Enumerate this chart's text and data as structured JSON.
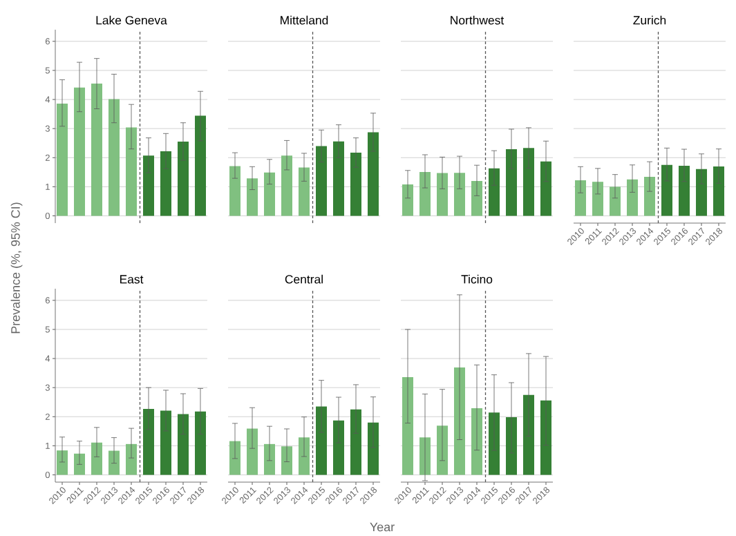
{
  "chart_data": [
    {
      "type": "bar",
      "title": "Lake Geneva",
      "ylabel": "Prevalence (%, 95% CI)",
      "x": [
        2010,
        2011,
        2012,
        2013,
        2014,
        2015,
        2016,
        2017,
        2018
      ],
      "xlim": [
        2009.6,
        2018.4
      ],
      "ylim": [
        -0.25,
        6.4
      ],
      "yticks": [
        0,
        1,
        2,
        3,
        4,
        5,
        6
      ],
      "grid": "y",
      "tick_labels": "y",
      "values": [
        3.86,
        4.41,
        4.55,
        4.01,
        3.04,
        2.07,
        2.22,
        2.55,
        3.44
      ],
      "errors": [
        [
          3.08,
          4.68
        ],
        [
          3.58,
          5.28
        ],
        [
          3.68,
          5.41
        ],
        [
          3.2,
          4.87
        ],
        [
          2.3,
          3.83
        ],
        [
          1.48,
          2.68
        ],
        [
          1.62,
          2.83
        ],
        [
          1.91,
          3.2
        ],
        [
          2.58,
          4.28
        ]
      ],
      "colors": [
        "#80c080",
        "#80c080",
        "#80c080",
        "#80c080",
        "#80c080",
        "#358035",
        "#358035",
        "#358035",
        "#358035"
      ],
      "ref_lines": [
        {
          "axis": "x",
          "value": 2014.5,
          "color": "#555555",
          "line_style": "dashed"
        }
      ]
    },
    {
      "type": "bar",
      "title": "Mitteland",
      "x": [
        2010,
        2011,
        2012,
        2013,
        2014,
        2015,
        2016,
        2017,
        2018
      ],
      "xlim": [
        2009.6,
        2018.4
      ],
      "ylim": [
        -0.25,
        6.4
      ],
      "yticks": [
        0,
        1,
        2,
        3,
        4,
        5,
        6
      ],
      "grid": "y",
      "tick_labels": false,
      "values": [
        1.71,
        1.29,
        1.49,
        2.07,
        1.66,
        2.4,
        2.56,
        2.17,
        2.87
      ],
      "errors": [
        [
          1.29,
          2.17
        ],
        [
          0.9,
          1.69
        ],
        [
          1.09,
          1.94
        ],
        [
          1.58,
          2.59
        ],
        [
          1.19,
          2.15
        ],
        [
          1.85,
          2.95
        ],
        [
          2.0,
          3.13
        ],
        [
          1.67,
          2.68
        ],
        [
          2.22,
          3.53
        ]
      ],
      "colors": [
        "#80c080",
        "#80c080",
        "#80c080",
        "#80c080",
        "#80c080",
        "#358035",
        "#358035",
        "#358035",
        "#358035"
      ],
      "ref_lines": [
        {
          "axis": "x",
          "value": 2014.5,
          "color": "#555555",
          "line_style": "dashed"
        }
      ]
    },
    {
      "type": "bar",
      "title": "Northwest",
      "x": [
        2010,
        2011,
        2012,
        2013,
        2014,
        2015,
        2016,
        2017,
        2018
      ],
      "xlim": [
        2009.6,
        2018.4
      ],
      "ylim": [
        -0.25,
        6.4
      ],
      "yticks": [
        0,
        1,
        2,
        3,
        4,
        5,
        6
      ],
      "grid": "y",
      "tick_labels": false,
      "values": [
        1.08,
        1.51,
        1.47,
        1.48,
        1.2,
        1.63,
        2.29,
        2.33,
        1.87
      ],
      "errors": [
        [
          0.61,
          1.56
        ],
        [
          0.96,
          2.1
        ],
        [
          0.93,
          2.02
        ],
        [
          0.93,
          2.05
        ],
        [
          0.69,
          1.74
        ],
        [
          1.05,
          2.24
        ],
        [
          1.62,
          2.98
        ],
        [
          1.64,
          3.03
        ],
        [
          1.18,
          2.57
        ]
      ],
      "colors": [
        "#80c080",
        "#80c080",
        "#80c080",
        "#80c080",
        "#80c080",
        "#358035",
        "#358035",
        "#358035",
        "#358035"
      ],
      "ref_lines": [
        {
          "axis": "x",
          "value": 2014.5,
          "color": "#555555",
          "line_style": "dashed"
        }
      ]
    },
    {
      "type": "bar",
      "title": "Zurich",
      "x": [
        2010,
        2011,
        2012,
        2013,
        2014,
        2015,
        2016,
        2017,
        2018
      ],
      "xlim": [
        2009.6,
        2018.4
      ],
      "xticks": [
        2010,
        2011,
        2012,
        2013,
        2014,
        2015,
        2016,
        2017,
        2018
      ],
      "ylim": [
        -0.25,
        6.4
      ],
      "yticks": [
        0,
        1,
        2,
        3,
        4,
        5,
        6
      ],
      "grid": "y",
      "tick_labels": "x",
      "values": [
        1.22,
        1.17,
        1.0,
        1.25,
        1.34,
        1.75,
        1.72,
        1.61,
        1.7
      ],
      "errors": [
        [
          0.79,
          1.69
        ],
        [
          0.75,
          1.63
        ],
        [
          0.61,
          1.42
        ],
        [
          0.81,
          1.75
        ],
        [
          0.84,
          1.86
        ],
        [
          1.2,
          2.33
        ],
        [
          1.18,
          2.29
        ],
        [
          1.1,
          2.13
        ],
        [
          1.12,
          2.3
        ]
      ],
      "colors": [
        "#80c080",
        "#80c080",
        "#80c080",
        "#80c080",
        "#80c080",
        "#358035",
        "#358035",
        "#358035",
        "#358035"
      ],
      "ref_lines": [
        {
          "axis": "x",
          "value": 2014.5,
          "color": "#555555",
          "line_style": "dashed"
        }
      ]
    },
    {
      "type": "bar",
      "title": "East",
      "x": [
        2010,
        2011,
        2012,
        2013,
        2014,
        2015,
        2016,
        2017,
        2018
      ],
      "xlim": [
        2009.6,
        2018.4
      ],
      "xticks": [
        2010,
        2011,
        2012,
        2013,
        2014,
        2015,
        2016,
        2017,
        2018
      ],
      "ylim": [
        -0.25,
        6.4
      ],
      "yticks": [
        0,
        1,
        2,
        3,
        4,
        5,
        6
      ],
      "grid": "y",
      "values": [
        0.84,
        0.73,
        1.11,
        0.83,
        1.06,
        2.27,
        2.21,
        2.09,
        2.18
      ],
      "errors": [
        [
          0.44,
          1.3
        ],
        [
          0.36,
          1.16
        ],
        [
          0.62,
          1.63
        ],
        [
          0.4,
          1.28
        ],
        [
          0.58,
          1.6
        ],
        [
          1.56,
          3.0
        ],
        [
          1.51,
          2.91
        ],
        [
          1.4,
          2.79
        ],
        [
          1.4,
          2.97
        ]
      ],
      "colors": [
        "#80c080",
        "#80c080",
        "#80c080",
        "#80c080",
        "#80c080",
        "#358035",
        "#358035",
        "#358035",
        "#358035"
      ],
      "ref_lines": [
        {
          "axis": "x",
          "value": 2014.5,
          "color": "#555555",
          "line_style": "dashed"
        }
      ]
    },
    {
      "type": "bar",
      "title": "Central",
      "xlabel": "Year",
      "x": [
        2010,
        2011,
        2012,
        2013,
        2014,
        2015,
        2016,
        2017,
        2018
      ],
      "xlim": [
        2009.6,
        2018.4
      ],
      "xticks": [
        2010,
        2011,
        2012,
        2013,
        2014,
        2015,
        2016,
        2017,
        2018
      ],
      "ylim": [
        -0.25,
        6.4
      ],
      "yticks": [
        0,
        1,
        2,
        3,
        4,
        5,
        6
      ],
      "grid": "y",
      "tick_labels": "x",
      "values": [
        1.16,
        1.59,
        1.06,
        0.98,
        1.29,
        2.35,
        1.87,
        2.25,
        1.8
      ],
      "errors": [
        [
          0.56,
          1.77
        ],
        [
          0.91,
          2.31
        ],
        [
          0.49,
          1.67
        ],
        [
          0.45,
          1.58
        ],
        [
          0.63,
          1.99
        ],
        [
          1.46,
          3.25
        ],
        [
          1.1,
          2.67
        ],
        [
          1.43,
          3.1
        ],
        [
          0.94,
          2.68
        ]
      ],
      "colors": [
        "#80c080",
        "#80c080",
        "#80c080",
        "#80c080",
        "#80c080",
        "#358035",
        "#358035",
        "#358035",
        "#358035"
      ],
      "ref_lines": [
        {
          "axis": "x",
          "value": 2014.5,
          "color": "#555555",
          "line_style": "dashed"
        }
      ]
    },
    {
      "type": "bar",
      "title": "Ticino",
      "x": [
        2010,
        2011,
        2012,
        2013,
        2014,
        2015,
        2016,
        2017,
        2018
      ],
      "xlim": [
        2009.6,
        2018.4
      ],
      "xticks": [
        2010,
        2011,
        2012,
        2013,
        2014,
        2015,
        2016,
        2017,
        2018
      ],
      "ylim": [
        -0.25,
        6.4
      ],
      "yticks": [
        0,
        1,
        2,
        3,
        4,
        5,
        6
      ],
      "grid": "y",
      "tick_labels": "x",
      "values": [
        3.36,
        1.29,
        1.69,
        3.69,
        2.29,
        2.14,
        1.98,
        2.75,
        2.56
      ],
      "errors": [
        [
          1.78,
          5.0
        ],
        [
          -0.2,
          2.78
        ],
        [
          0.49,
          2.94
        ],
        [
          1.21,
          6.19
        ],
        [
          0.85,
          3.78
        ],
        [
          0.84,
          3.44
        ],
        [
          0.75,
          3.17
        ],
        [
          1.33,
          4.17
        ],
        [
          1.02,
          4.07
        ]
      ],
      "colors": [
        "#80c080",
        "#80c080",
        "#80c080",
        "#80c080",
        "#80c080",
        "#358035",
        "#358035",
        "#358035",
        "#358035"
      ],
      "ref_lines": [
        {
          "axis": "x",
          "value": 2014.5,
          "color": "#555555",
          "line_style": "dashed"
        }
      ]
    }
  ]
}
